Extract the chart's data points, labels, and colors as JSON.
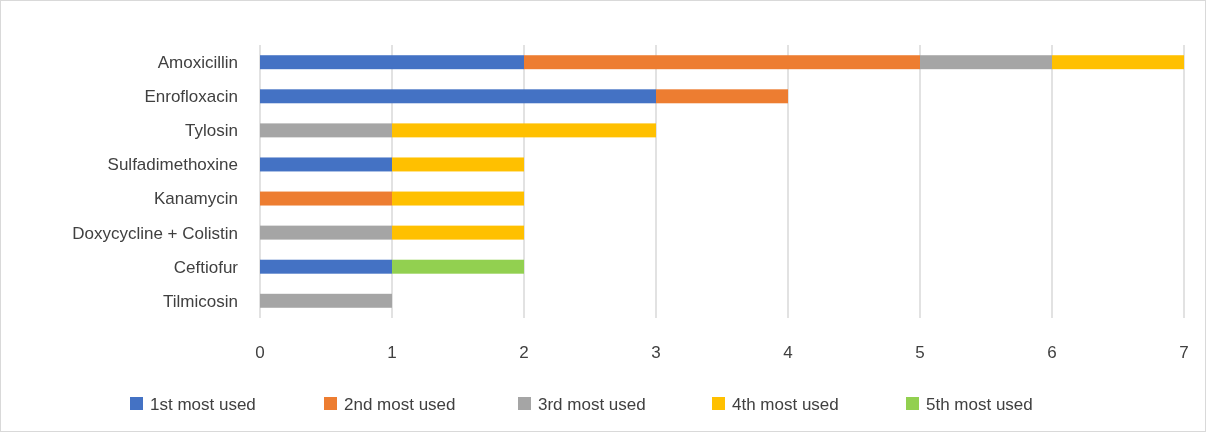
{
  "chart_data": {
    "type": "bar",
    "orientation": "horizontal",
    "stacked": true,
    "categories": [
      "Amoxicillin",
      "Enrofloxacin",
      "Tylosin",
      "Sulfadimethoxine",
      "Kanamycin",
      "Doxycycline + Colistin",
      "Ceftiofur",
      "Tilmicosin"
    ],
    "series": [
      {
        "name": "1st most used",
        "color": "#4472c4",
        "values": [
          2,
          3,
          null,
          1,
          null,
          null,
          1,
          null
        ]
      },
      {
        "name": "2nd most used",
        "color": "#ed7d31",
        "values": [
          3,
          1,
          null,
          null,
          1,
          null,
          null,
          null
        ]
      },
      {
        "name": "3rd most used",
        "color": "#a5a5a5",
        "values": [
          1,
          null,
          1,
          null,
          null,
          1,
          null,
          1
        ]
      },
      {
        "name": "4th most used",
        "color": "#ffc000",
        "values": [
          1,
          null,
          2,
          1,
          1,
          1,
          null,
          null
        ]
      },
      {
        "name": "5th most used",
        "color": "#92d050",
        "values": [
          null,
          null,
          null,
          null,
          null,
          null,
          1,
          null
        ]
      }
    ],
    "xlim": [
      0,
      7
    ],
    "xticks": [
      0,
      1,
      2,
      3,
      4,
      5,
      6,
      7
    ],
    "grid": "x",
    "legend": "bottom"
  }
}
